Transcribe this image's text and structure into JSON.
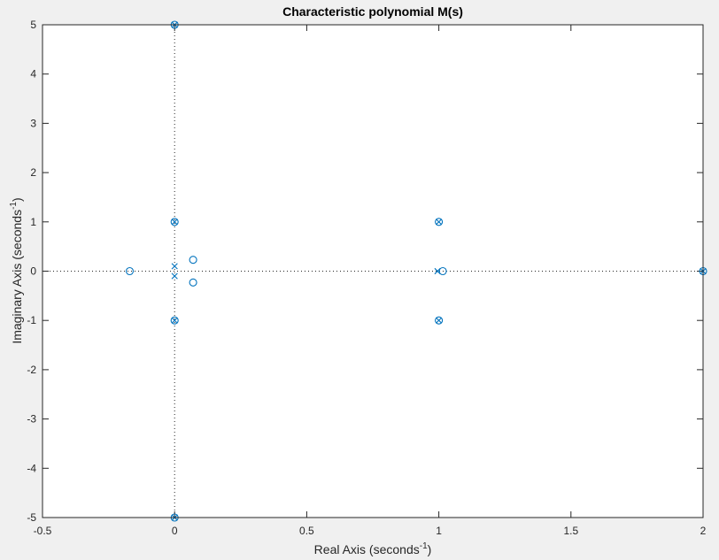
{
  "chart_data": {
    "type": "scatter",
    "title": "Characteristic polynomial M(s)",
    "xlabel": {
      "text": "Real Axis (seconds",
      "sup": "-1",
      "close": ")"
    },
    "ylabel": {
      "text": "Imaginary Axis (seconds",
      "sup": "-1",
      "close": ")"
    },
    "xlim": [
      -0.5,
      2
    ],
    "ylim": [
      -5,
      5
    ],
    "xticks": [
      -0.5,
      0,
      0.5,
      1,
      1.5,
      2
    ],
    "xtick_labels": [
      "-0.5",
      "0",
      "0.5",
      "1",
      "1.5",
      "2"
    ],
    "yticks": [
      -5,
      -4,
      -3,
      -2,
      -1,
      0,
      1,
      2,
      3,
      4,
      5
    ],
    "ytick_labels": [
      "-5",
      "-4",
      "-3",
      "-2",
      "-1",
      "0",
      "1",
      "2",
      "3",
      "4",
      "5"
    ],
    "grid": false,
    "marker_color": "#0072BD",
    "zeros": [
      {
        "x": 0,
        "y": 5
      },
      {
        "x": 0,
        "y": -5
      },
      {
        "x": 0,
        "y": 1
      },
      {
        "x": 0,
        "y": -1
      },
      {
        "x": -0.17,
        "y": 0
      },
      {
        "x": 0.07,
        "y": 0.23
      },
      {
        "x": 0.07,
        "y": -0.23
      },
      {
        "x": 1,
        "y": 1
      },
      {
        "x": 1,
        "y": -1
      },
      {
        "x": 1.015,
        "y": 0
      },
      {
        "x": 2,
        "y": 0
      }
    ],
    "poles": [
      {
        "x": 0,
        "y": 5
      },
      {
        "x": 0,
        "y": -5
      },
      {
        "x": 0,
        "y": 1
      },
      {
        "x": 0,
        "y": -1
      },
      {
        "x": 0,
        "y": 0.1
      },
      {
        "x": 0,
        "y": -0.1
      },
      {
        "x": 1,
        "y": 1
      },
      {
        "x": 1,
        "y": -1
      },
      {
        "x": 0.995,
        "y": 0
      },
      {
        "x": 2,
        "y": 0
      }
    ]
  }
}
